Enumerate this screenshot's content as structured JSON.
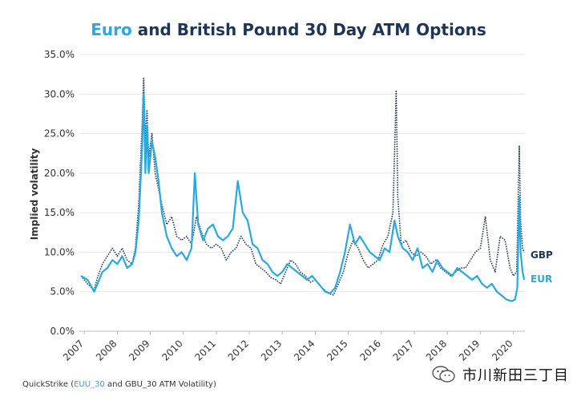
{
  "chart_data": {
    "type": "line",
    "title": "Euro and British Pound 30 Day ATM Options",
    "title_segments": [
      {
        "text": "Euro",
        "color": "#29a9df"
      },
      {
        "text": " and British Pound 30 Day ATM Options",
        "color": "#1d3557"
      }
    ],
    "xlabel": "",
    "ylabel": "Implied volatility",
    "ylim": [
      0,
      35
    ],
    "yticks": [
      "0.0%",
      "5.0%",
      "10.0%",
      "15.0%",
      "20.0%",
      "25.0%",
      "30.0%",
      "35.0%"
    ],
    "xlim": [
      2006.85,
      2020.35
    ],
    "xticks": [
      "2007",
      "2008",
      "2009",
      "2010",
      "2011",
      "2012",
      "2013",
      "2014",
      "2015",
      "2016",
      "2017",
      "2018",
      "2019",
      "2020"
    ],
    "grid": "horizontal",
    "series": [
      {
        "name": "GBP",
        "color": "#1d3557",
        "style": "dotted",
        "points": [
          [
            2006.9,
            7.0
          ],
          [
            2007.1,
            6.0
          ],
          [
            2007.3,
            5.2
          ],
          [
            2007.4,
            6.8
          ],
          [
            2007.55,
            8.5
          ],
          [
            2007.7,
            9.5
          ],
          [
            2007.85,
            10.5
          ],
          [
            2008.0,
            9.5
          ],
          [
            2008.15,
            10.5
          ],
          [
            2008.3,
            9.0
          ],
          [
            2008.45,
            8.5
          ],
          [
            2008.55,
            10.5
          ],
          [
            2008.65,
            16.0
          ],
          [
            2008.75,
            26.0
          ],
          [
            2008.8,
            32.0
          ],
          [
            2008.85,
            24.0
          ],
          [
            2008.9,
            28.0
          ],
          [
            2008.95,
            22.0
          ],
          [
            2009.05,
            25.0
          ],
          [
            2009.15,
            20.0
          ],
          [
            2009.25,
            18.0
          ],
          [
            2009.35,
            16.0
          ],
          [
            2009.5,
            13.5
          ],
          [
            2009.65,
            14.5
          ],
          [
            2009.8,
            12.0
          ],
          [
            2009.95,
            11.5
          ],
          [
            2010.1,
            12.0
          ],
          [
            2010.25,
            11.0
          ],
          [
            2010.4,
            14.5
          ],
          [
            2010.55,
            12.5
          ],
          [
            2010.7,
            11.0
          ],
          [
            2010.85,
            10.5
          ],
          [
            2011.0,
            11.0
          ],
          [
            2011.15,
            10.5
          ],
          [
            2011.3,
            9.0
          ],
          [
            2011.45,
            10.0
          ],
          [
            2011.6,
            10.5
          ],
          [
            2011.75,
            12.0
          ],
          [
            2011.9,
            11.0
          ],
          [
            2012.05,
            10.5
          ],
          [
            2012.2,
            8.5
          ],
          [
            2012.35,
            8.0
          ],
          [
            2012.5,
            7.5
          ],
          [
            2012.65,
            6.8
          ],
          [
            2012.8,
            6.5
          ],
          [
            2012.95,
            6.0
          ],
          [
            2013.1,
            7.5
          ],
          [
            2013.25,
            9.0
          ],
          [
            2013.4,
            8.5
          ],
          [
            2013.55,
            7.5
          ],
          [
            2013.7,
            7.0
          ],
          [
            2013.85,
            6.2
          ],
          [
            2014.0,
            6.5
          ],
          [
            2014.2,
            5.5
          ],
          [
            2014.4,
            4.8
          ],
          [
            2014.55,
            4.6
          ],
          [
            2014.7,
            6.0
          ],
          [
            2014.85,
            7.5
          ],
          [
            2015.0,
            10.0
          ],
          [
            2015.15,
            11.5
          ],
          [
            2015.3,
            10.5
          ],
          [
            2015.45,
            9.0
          ],
          [
            2015.6,
            8.0
          ],
          [
            2015.75,
            8.5
          ],
          [
            2015.9,
            9.0
          ],
          [
            2016.05,
            11.0
          ],
          [
            2016.2,
            12.0
          ],
          [
            2016.35,
            15.0
          ],
          [
            2016.45,
            30.5
          ],
          [
            2016.5,
            17.0
          ],
          [
            2016.6,
            11.0
          ],
          [
            2016.75,
            11.5
          ],
          [
            2016.9,
            10.0
          ],
          [
            2017.05,
            9.5
          ],
          [
            2017.2,
            10.0
          ],
          [
            2017.35,
            9.5
          ],
          [
            2017.5,
            8.5
          ],
          [
            2017.65,
            9.0
          ],
          [
            2017.8,
            8.0
          ],
          [
            2017.95,
            7.5
          ],
          [
            2018.1,
            7.0
          ],
          [
            2018.25,
            7.5
          ],
          [
            2018.4,
            8.0
          ],
          [
            2018.55,
            8.0
          ],
          [
            2018.7,
            9.0
          ],
          [
            2018.85,
            10.0
          ],
          [
            2019.0,
            10.5
          ],
          [
            2019.15,
            14.5
          ],
          [
            2019.3,
            9.0
          ],
          [
            2019.45,
            7.5
          ],
          [
            2019.6,
            12.0
          ],
          [
            2019.75,
            11.5
          ],
          [
            2019.9,
            8.0
          ],
          [
            2020.0,
            7.0
          ],
          [
            2020.1,
            7.5
          ],
          [
            2020.18,
            23.5
          ],
          [
            2020.22,
            14.0
          ],
          [
            2020.28,
            10.5
          ],
          [
            2020.33,
            10.0
          ]
        ]
      },
      {
        "name": "EUR",
        "color": "#29a9df",
        "style": "solid",
        "points": [
          [
            2006.9,
            7.0
          ],
          [
            2007.1,
            6.5
          ],
          [
            2007.3,
            5.0
          ],
          [
            2007.4,
            6.0
          ],
          [
            2007.55,
            7.5
          ],
          [
            2007.7,
            8.0
          ],
          [
            2007.85,
            9.0
          ],
          [
            2008.0,
            8.5
          ],
          [
            2008.15,
            9.5
          ],
          [
            2008.3,
            8.0
          ],
          [
            2008.45,
            8.5
          ],
          [
            2008.55,
            10.0
          ],
          [
            2008.65,
            14.0
          ],
          [
            2008.75,
            23.0
          ],
          [
            2008.8,
            30.0
          ],
          [
            2008.85,
            20.0
          ],
          [
            2008.9,
            26.0
          ],
          [
            2008.95,
            20.0
          ],
          [
            2009.05,
            24.0
          ],
          [
            2009.15,
            22.0
          ],
          [
            2009.25,
            19.0
          ],
          [
            2009.35,
            15.0
          ],
          [
            2009.5,
            12.0
          ],
          [
            2009.65,
            10.5
          ],
          [
            2009.8,
            9.5
          ],
          [
            2009.95,
            10.0
          ],
          [
            2010.1,
            9.0
          ],
          [
            2010.25,
            10.5
          ],
          [
            2010.35,
            20.0
          ],
          [
            2010.45,
            13.5
          ],
          [
            2010.6,
            11.5
          ],
          [
            2010.75,
            13.0
          ],
          [
            2010.9,
            13.5
          ],
          [
            2011.05,
            12.0
          ],
          [
            2011.2,
            11.5
          ],
          [
            2011.35,
            12.0
          ],
          [
            2011.5,
            13.0
          ],
          [
            2011.65,
            19.0
          ],
          [
            2011.8,
            15.0
          ],
          [
            2011.95,
            14.0
          ],
          [
            2012.1,
            11.0
          ],
          [
            2012.25,
            10.5
          ],
          [
            2012.4,
            9.0
          ],
          [
            2012.55,
            8.5
          ],
          [
            2012.7,
            7.5
          ],
          [
            2012.85,
            7.0
          ],
          [
            2013.0,
            7.5
          ],
          [
            2013.15,
            8.5
          ],
          [
            2013.3,
            8.0
          ],
          [
            2013.45,
            7.5
          ],
          [
            2013.6,
            7.0
          ],
          [
            2013.75,
            6.5
          ],
          [
            2013.9,
            7.0
          ],
          [
            2014.1,
            6.0
          ],
          [
            2014.3,
            5.0
          ],
          [
            2014.45,
            4.8
          ],
          [
            2014.6,
            5.5
          ],
          [
            2014.75,
            7.5
          ],
          [
            2014.9,
            10.0
          ],
          [
            2015.05,
            13.5
          ],
          [
            2015.2,
            11.0
          ],
          [
            2015.35,
            12.0
          ],
          [
            2015.5,
            11.0
          ],
          [
            2015.65,
            10.0
          ],
          [
            2015.8,
            9.5
          ],
          [
            2015.95,
            9.0
          ],
          [
            2016.1,
            10.5
          ],
          [
            2016.25,
            10.0
          ],
          [
            2016.4,
            14.0
          ],
          [
            2016.5,
            12.0
          ],
          [
            2016.65,
            10.5
          ],
          [
            2016.8,
            10.0
          ],
          [
            2016.95,
            9.0
          ],
          [
            2017.1,
            10.5
          ],
          [
            2017.25,
            8.0
          ],
          [
            2017.4,
            8.5
          ],
          [
            2017.55,
            7.5
          ],
          [
            2017.7,
            9.0
          ],
          [
            2017.85,
            8.0
          ],
          [
            2018.0,
            7.5
          ],
          [
            2018.15,
            7.0
          ],
          [
            2018.3,
            8.0
          ],
          [
            2018.45,
            7.5
          ],
          [
            2018.6,
            7.0
          ],
          [
            2018.75,
            6.5
          ],
          [
            2018.9,
            7.0
          ],
          [
            2019.05,
            6.0
          ],
          [
            2019.2,
            5.5
          ],
          [
            2019.35,
            6.0
          ],
          [
            2019.5,
            5.0
          ],
          [
            2019.65,
            4.5
          ],
          [
            2019.8,
            4.0
          ],
          [
            2019.95,
            3.8
          ],
          [
            2020.05,
            4.0
          ],
          [
            2020.12,
            5.5
          ],
          [
            2020.18,
            17.0
          ],
          [
            2020.22,
            10.0
          ],
          [
            2020.28,
            7.5
          ],
          [
            2020.33,
            6.5
          ]
        ]
      }
    ],
    "series_end_labels": [
      {
        "text": "GBP",
        "color": "#1d3557"
      },
      {
        "text": "EUR",
        "color": "#29a9df"
      }
    ]
  },
  "source": {
    "prefix": "QuickStrike (",
    "highlight": "EUU_30",
    "suffix": " and GBU_30 ATM Volatility)",
    "highlight_color": "#29a9df"
  },
  "watermark": {
    "text": "市川新田三丁目",
    "icon": "wechat-icon"
  }
}
